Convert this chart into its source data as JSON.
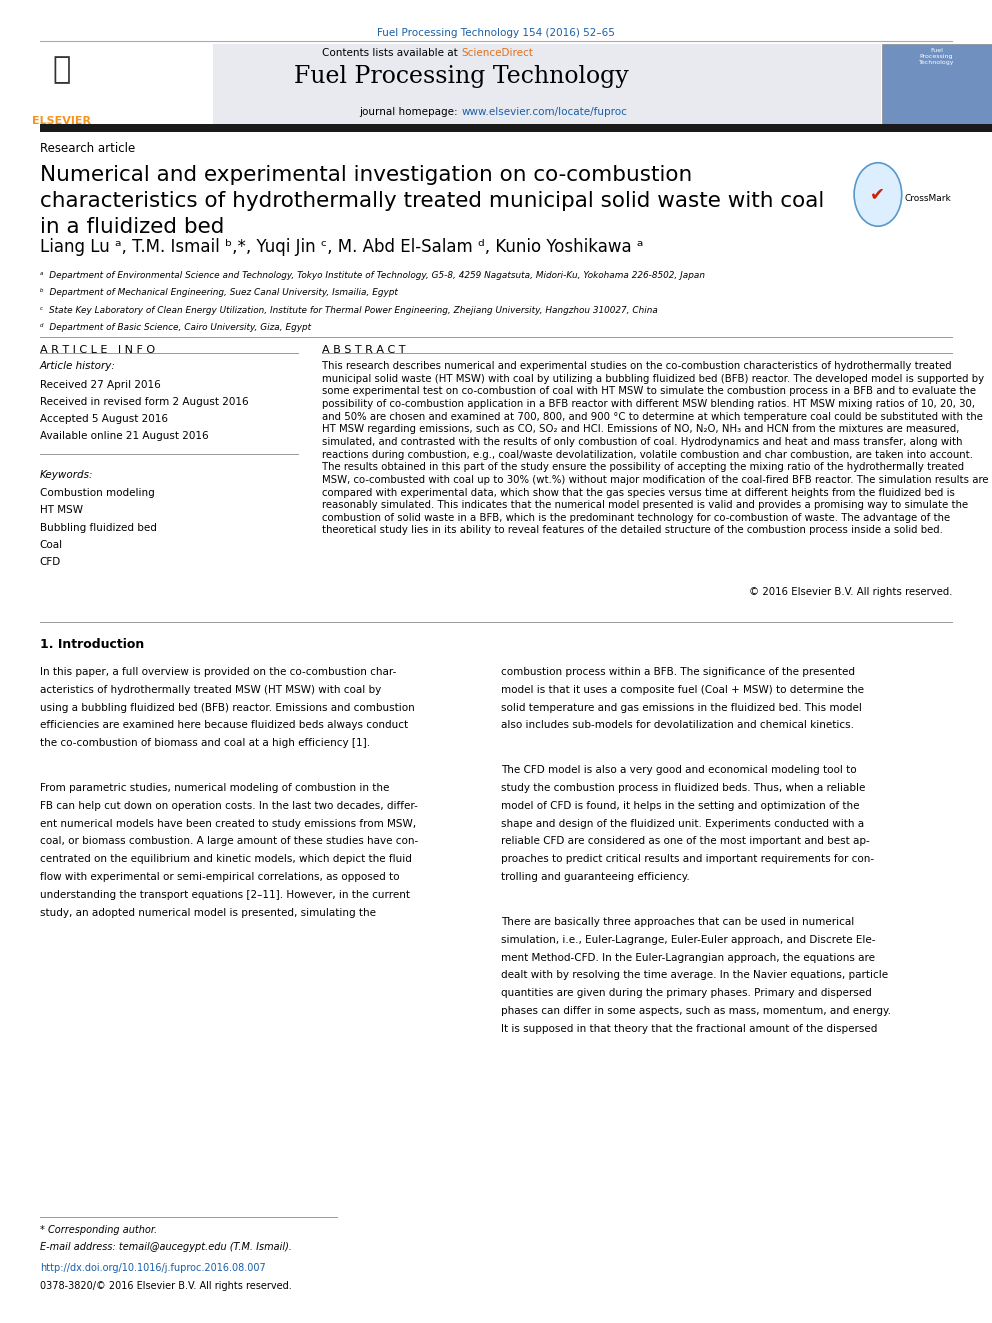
{
  "journal_ref": "Fuel Processing Technology 154 (2016) 52–65",
  "journal_name": "Fuel Processing Technology",
  "journal_homepage_prefix": "journal homepage: ",
  "journal_homepage_url": "www.elsevier.com/locate/fuproc",
  "section_label": "Research article",
  "title_line1": "Numerical and experimental investigation on co-combustion",
  "title_line2": "characteristics of hydrothermally treated municipal solid waste with coal",
  "title_line3": "in a fluidized bed",
  "authors_line": "Liang Lu ᵃ, T.M. Ismail ᵇ,*, Yuqi Jin ᶜ, M. Abd El-Salam ᵈ, Kunio Yoshikawa ᵃ",
  "affiliations": [
    "ᵃ  Department of Environmental Science and Technology, Tokyo Institute of Technology, G5-8, 4259 Nagatsuta, Midori-Ku, Yokohama 226-8502, Japan",
    "ᵇ  Department of Mechanical Engineering, Suez Canal University, Ismailia, Egypt",
    "ᶜ  State Key Laboratory of Clean Energy Utilization, Institute for Thermal Power Engineering, Zhejiang University, Hangzhou 310027, China",
    "ᵈ  Department of Basic Science, Cairo University, Giza, Egypt"
  ],
  "article_info_header": "A R T I C L E   I N F O",
  "abstract_header": "A B S T R A C T",
  "article_history_label": "Article history:",
  "article_history": [
    "Received 27 April 2016",
    "Received in revised form 2 August 2016",
    "Accepted 5 August 2016",
    "Available online 21 August 2016"
  ],
  "keywords_label": "Keywords:",
  "keywords": [
    "Combustion modeling",
    "HT MSW",
    "Bubbling fluidized bed",
    "Coal",
    "CFD"
  ],
  "abstract_text": "This research describes numerical and experimental studies on the co-combustion characteristics of hydrothermally treated municipal solid waste (HT MSW) with coal by utilizing a bubbling fluidized bed (BFB) reactor. The developed model is supported by some experimental test on co-combustion of coal with HT MSW to simulate the combustion process in a BFB and to evaluate the possibility of co-combustion application in a BFB reactor with different MSW blending ratios. HT MSW mixing ratios of 10, 20, 30, and 50% are chosen and examined at 700, 800, and 900 °C to determine at which temperature coal could be substituted with the HT MSW regarding emissions, such as CO, SO₂ and HCl. Emissions of NO, N₂O, NH₃ and HCN from the mixtures are measured, simulated, and contrasted with the results of only combustion of coal. Hydrodynamics and heat and mass transfer, along with reactions during combustion, e.g., coal/waste devolatilization, volatile combustion and char combustion, are taken into account. The results obtained in this part of the study ensure the possibility of accepting the mixing ratio of the hydrothermally treated MSW, co-combusted with coal up to 30% (wt.%) without major modification of the coal-fired BFB reactor. The simulation results are compared with experimental data, which show that the gas species versus time at different heights from the fluidized bed is reasonably simulated. This indicates that the numerical model presented is valid and provides a promising way to simulate the combustion of solid waste in a BFB, which is the predominant technology for co-combustion of waste. The advantage of the theoretical study lies in its ability to reveal features of the detailed structure of the combustion process inside a solid bed.",
  "copyright": "© 2016 Elsevier B.V. All rights reserved.",
  "intro_header": "1. Introduction",
  "intro_col1_lines": [
    "In this paper, a full overview is provided on the co-combustion char-",
    "acteristics of hydrothermally treated MSW (HT MSW) with coal by",
    "using a bubbling fluidized bed (BFB) reactor. Emissions and combustion",
    "efficiencies are examined here because fluidized beds always conduct",
    "the co-combustion of biomass and coal at a high efficiency [1].",
    "",
    "From parametric studies, numerical modeling of combustion in the",
    "FB can help cut down on operation costs. In the last two decades, differ-",
    "ent numerical models have been created to study emissions from MSW,",
    "coal, or biomass combustion. A large amount of these studies have con-",
    "centrated on the equilibrium and kinetic models, which depict the fluid",
    "flow with experimental or semi-empirical correlations, as opposed to",
    "understanding the transport equations [2–11]. However, in the current",
    "study, an adopted numerical model is presented, simulating the"
  ],
  "intro_col2_lines": [
    "combustion process within a BFB. The significance of the presented",
    "model is that it uses a composite fuel (Coal + MSW) to determine the",
    "solid temperature and gas emissions in the fluidized bed. This model",
    "also includes sub-models for devolatilization and chemical kinetics.",
    "",
    "The CFD model is also a very good and economical modeling tool to",
    "study the combustion process in fluidized beds. Thus, when a reliable",
    "model of CFD is found, it helps in the setting and optimization of the",
    "shape and design of the fluidized unit. Experiments conducted with a",
    "reliable CFD are considered as one of the most important and best ap-",
    "proaches to predict critical results and important requirements for con-",
    "trolling and guaranteeing efficiency.",
    "",
    "There are basically three approaches that can be used in numerical",
    "simulation, i.e., Euler-Lagrange, Euler-Euler approach, and Discrete Ele-",
    "ment Method-CFD. In the Euler-Lagrangian approach, the equations are",
    "dealt with by resolving the time average. In the Navier equations, particle",
    "quantities are given during the primary phases. Primary and dispersed",
    "phases can differ in some aspects, such as mass, momentum, and energy.",
    "It is supposed in that theory that the fractional amount of the dispersed"
  ],
  "footnote_star": "* Corresponding author.",
  "footnote_email": "E-mail address: temail@aucegypt.edu (T.M. Ismail).",
  "doi": "http://dx.doi.org/10.1016/j.fuproc.2016.08.007",
  "issn": "0378-3820/© 2016 Elsevier B.V. All rights reserved.",
  "bg_color": "#ffffff",
  "header_bg_color": "#e8eaf0",
  "dark_bar_color": "#1a1a1a",
  "blue_link_color": "#1a5fa8",
  "science_direct_color": "#e07020",
  "elsevier_orange": "#f7941e",
  "separator_color": "#999999"
}
